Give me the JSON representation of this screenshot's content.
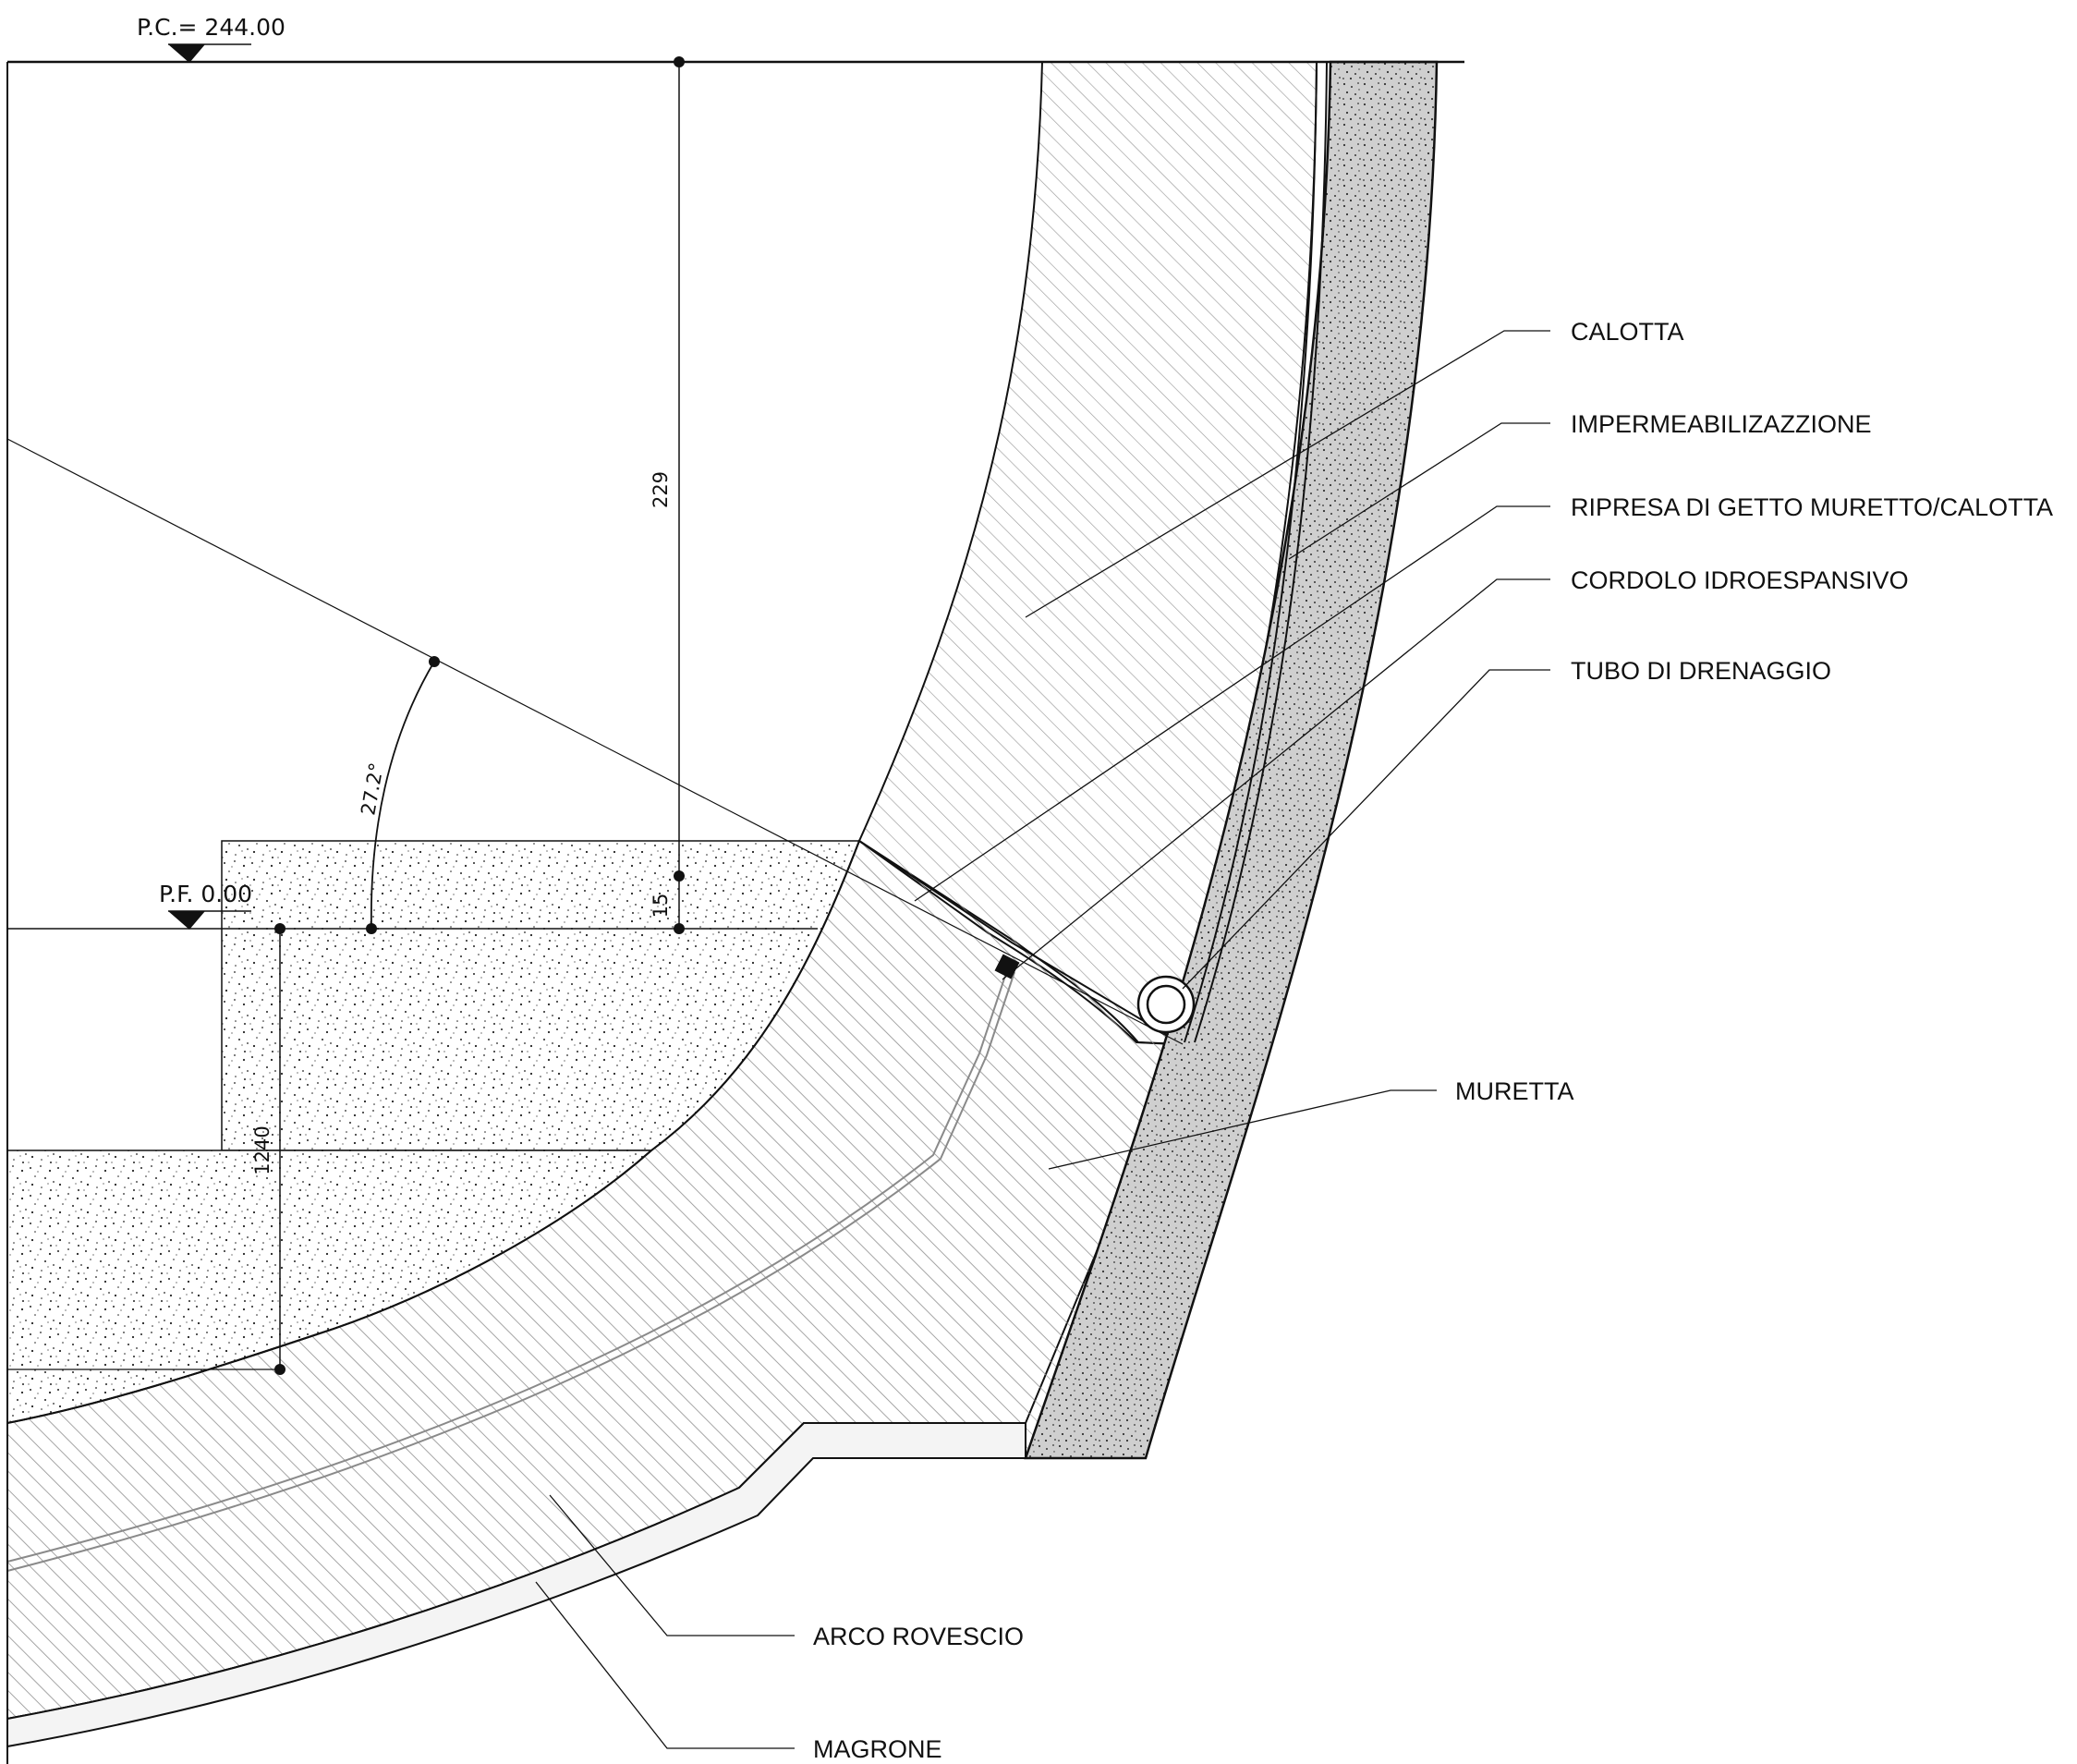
{
  "levels": {
    "top": "P.C.= 244.00",
    "floor": "P.F. 0.00"
  },
  "dimensions": {
    "height_main": "229",
    "height_small": "15",
    "width_floor": "1240",
    "angle": "27.2°"
  },
  "callouts": {
    "calotta": "CALOTTA",
    "impermeabilizzazione": "IMPERMEABILIZAZZIONE",
    "ripresa": "RIPRESA DI GETTO MURETTO/CALOTTA",
    "cordolo": "CORDOLO IDROESPANSIVO",
    "tubo": "TUBO DI DRENAGGIO",
    "muretta": "MURETTA",
    "arco": "ARCO ROVESCIO",
    "magrone": "MAGRONE"
  },
  "colors": {
    "line": "#111111",
    "hatch": "#9a9a9a",
    "speckle": "#222222",
    "background": "#ffffff"
  }
}
